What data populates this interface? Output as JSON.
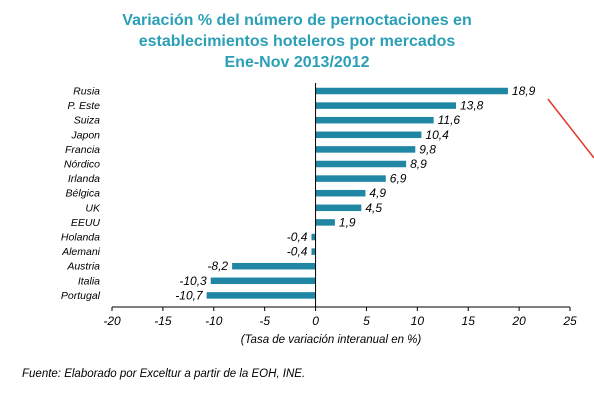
{
  "title_lines": [
    "Variación % del número de pernoctaciones en",
    "establecimientos hoteleros por mercados",
    "Ene-Nov 2013/2012"
  ],
  "source": "Fuente: Elaborado por Exceltur a partir de la EOH, INE.",
  "colors": {
    "title": "#2a9fb5",
    "bar": "#1f86a3",
    "annotation_line": "#e0392b"
  },
  "chart_data": {
    "type": "bar",
    "orientation": "horizontal",
    "categories": [
      "Rusia",
      "P. Este",
      "Suiza",
      "Japon",
      "Francia",
      "Nórdico",
      "Irlanda",
      "Bélgica",
      "UK",
      "EEUU",
      "Holanda",
      "Alemani",
      "Austria",
      "Italia",
      "Portugal"
    ],
    "values": [
      18.9,
      13.8,
      11.6,
      10.4,
      9.8,
      8.9,
      6.9,
      4.9,
      4.5,
      1.9,
      -0.4,
      -0.4,
      -8.2,
      -10.3,
      -10.7
    ],
    "value_labels": [
      "18,9",
      "13,8",
      "11,6",
      "10,4",
      "9,8",
      "8,9",
      "6,9",
      "4,9",
      "4,5",
      "1,9",
      "-0,4",
      "-0,4",
      "-8,2",
      "-10,3",
      "-10,7"
    ],
    "xlabel": "(Tasa de variación interanual en %)",
    "xlim": [
      -20,
      25
    ],
    "xticks": [
      -20,
      -15,
      -10,
      -5,
      0,
      5,
      10,
      15,
      20,
      25
    ],
    "grid": false,
    "legend": "none"
  }
}
